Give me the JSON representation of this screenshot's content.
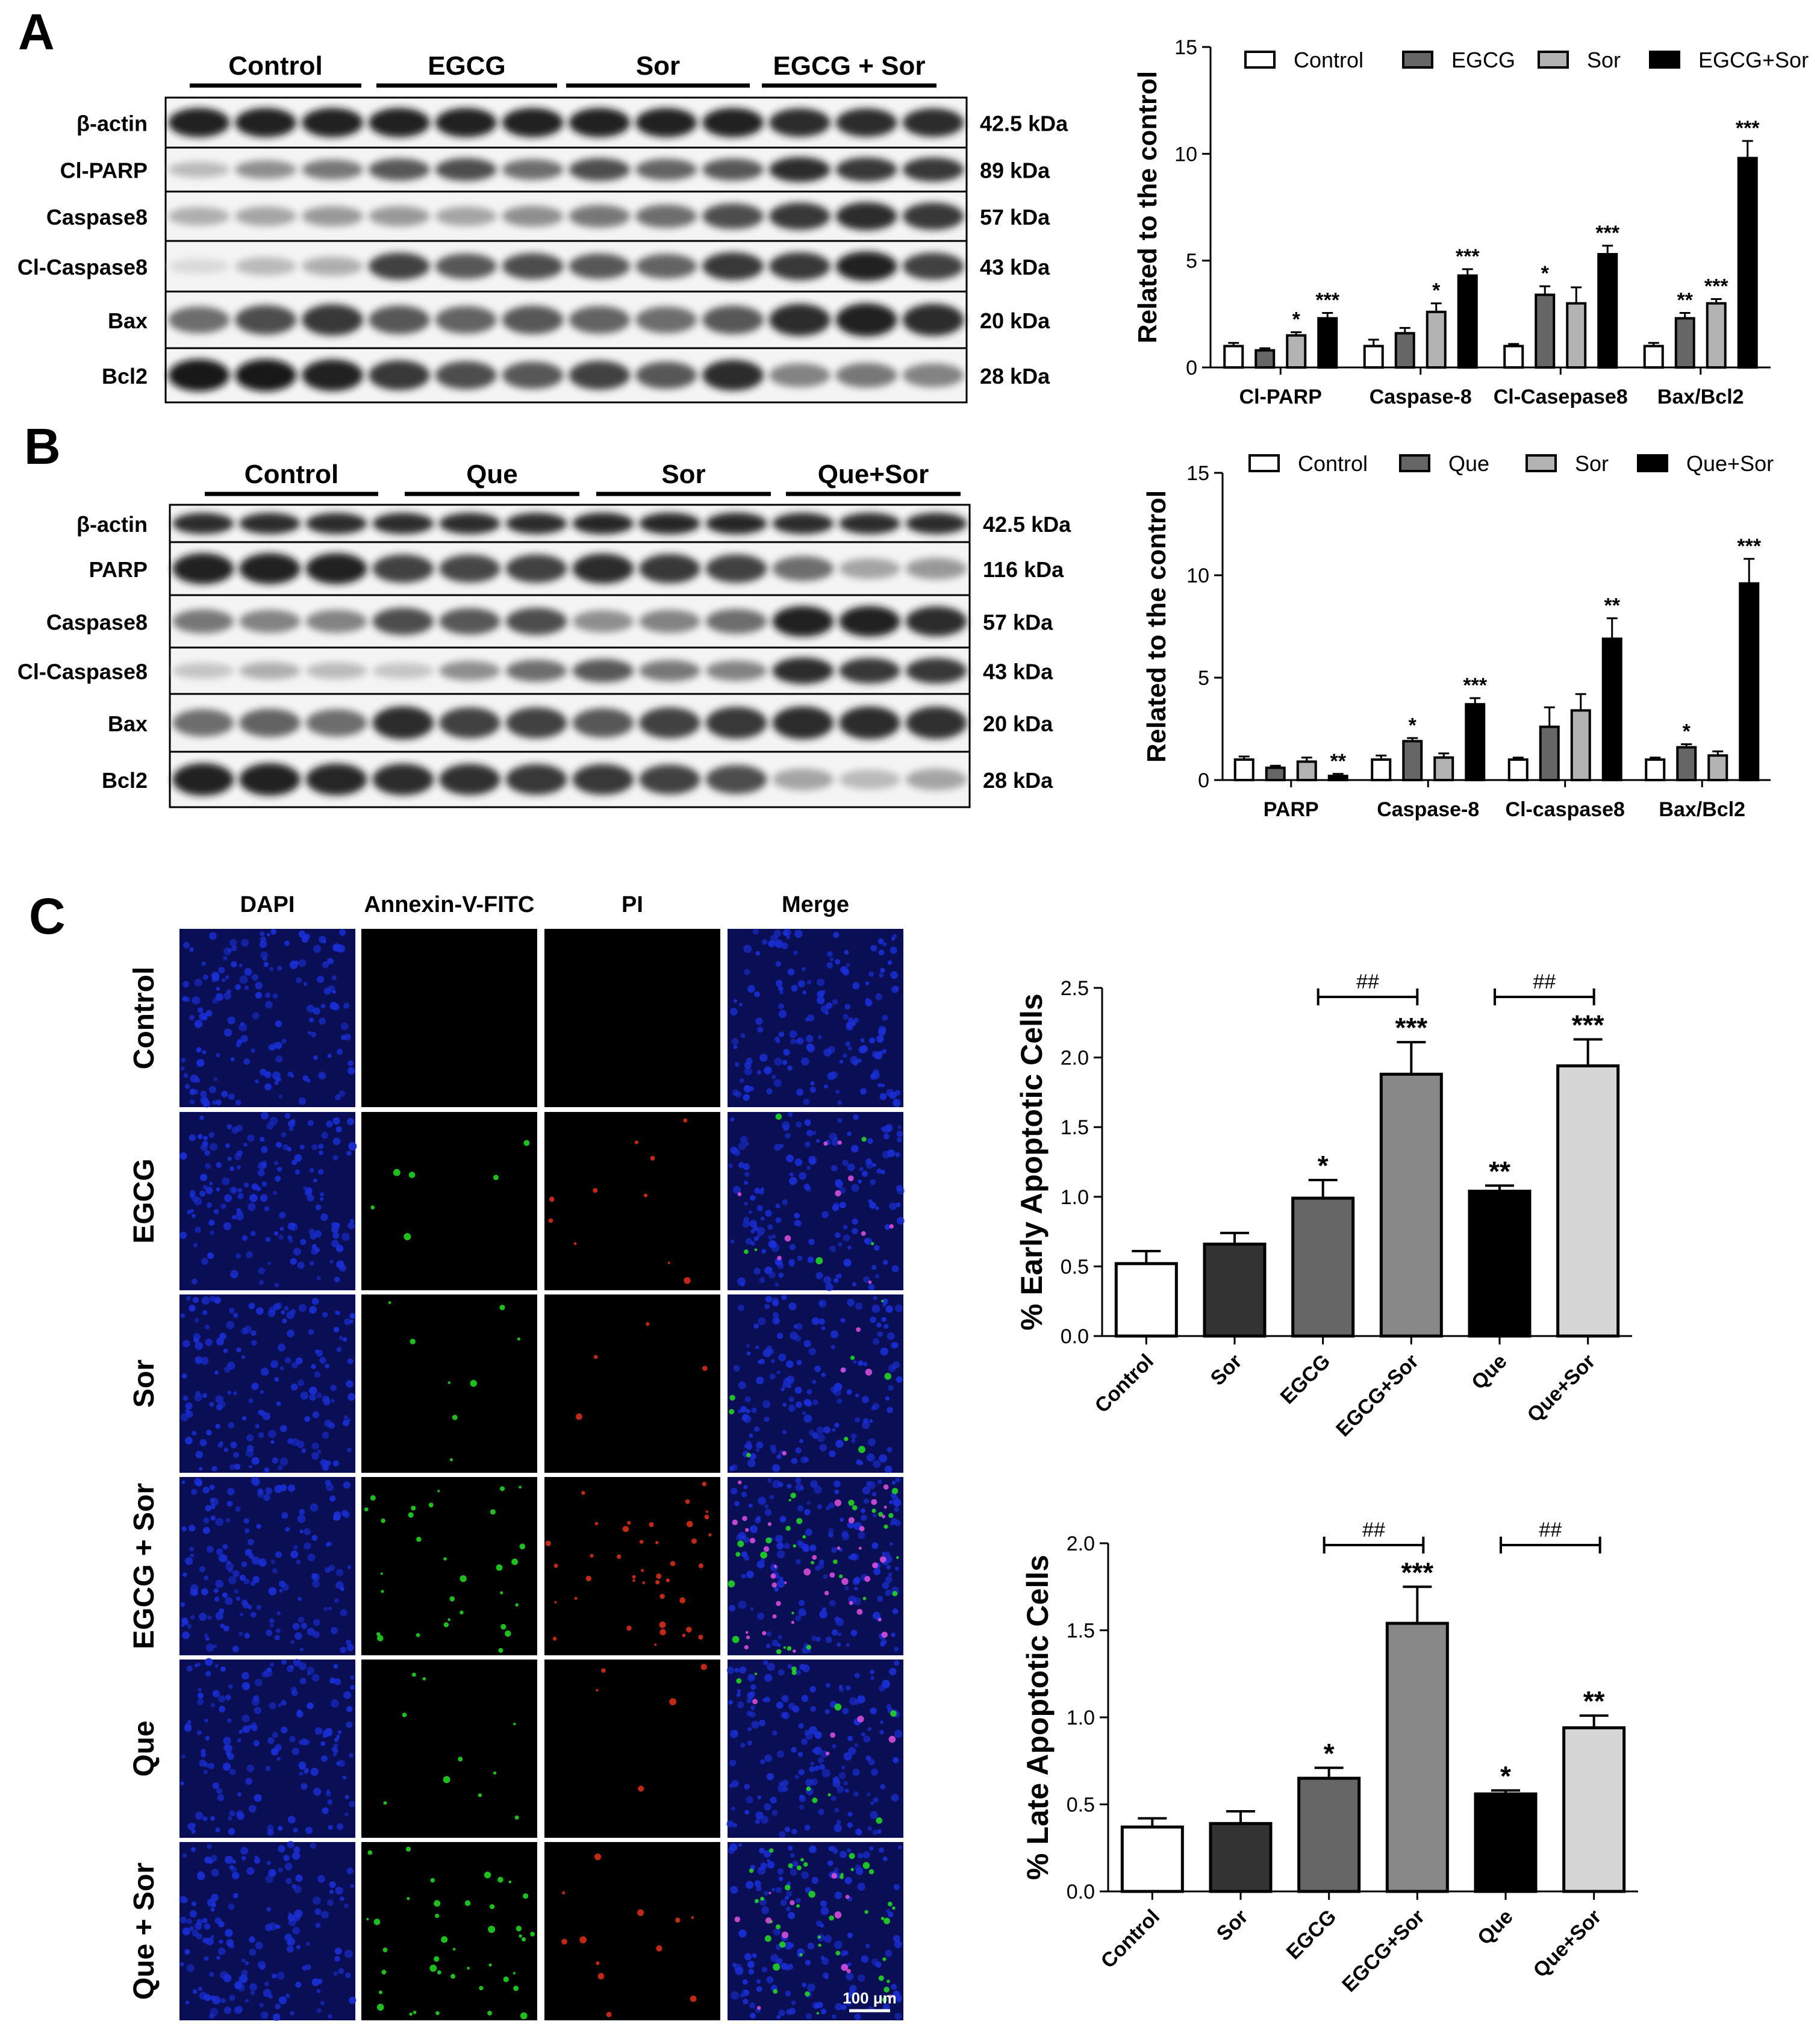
{
  "panels": {
    "a": "A",
    "b": "B",
    "c": "C"
  },
  "blot_a": {
    "groups": [
      "Control",
      "EGCG",
      "Sor",
      "EGCG + Sor"
    ],
    "rows": [
      {
        "label": "β-actin",
        "kda": "42.5 kDa"
      },
      {
        "label": "Cl-PARP",
        "kda": "89 kDa"
      },
      {
        "label": "Caspase8",
        "kda": "57 kDa"
      },
      {
        "label": "Cl-Caspase8",
        "kda": "43 kDa"
      },
      {
        "label": "Bax",
        "kda": "20 kDa"
      },
      {
        "label": "Bcl2",
        "kda": "28 kDa"
      }
    ]
  },
  "blot_b": {
    "groups": [
      "Control",
      "Que",
      "Sor",
      "Que+Sor"
    ],
    "rows": [
      {
        "label": "β-actin",
        "kda": "42.5 kDa"
      },
      {
        "label": "PARP",
        "kda": "116 kDa"
      },
      {
        "label": "Caspase8",
        "kda": "57 kDa"
      },
      {
        "label": "Cl-Caspase8",
        "kda": "43 kDa"
      },
      {
        "label": "Bax",
        "kda": "20 kDa"
      },
      {
        "label": "Bcl2",
        "kda": "28 kDa"
      }
    ]
  },
  "microscopy": {
    "columns": [
      "DAPI",
      "Annexin-V-FITC",
      "PI",
      "Merge"
    ],
    "rows": [
      "Control",
      "EGCG",
      "Sor",
      "EGCG + Sor",
      "Que",
      "Que + Sor"
    ],
    "scale_bar": "100 μm"
  },
  "colors": {
    "control": "#ffffff",
    "grey_dark": "#666666",
    "grey_light": "#b3b3b3",
    "black": "#000000",
    "sor_dark": "#333333",
    "egcg_sor": "#888888",
    "que_sor": "#d6d6d6",
    "dapi": "#1a2fd6",
    "fitc": "#22e022",
    "pi": "#e0301a"
  },
  "chart_data": [
    {
      "type": "bar",
      "ylabel": "Related to the control",
      "ylim": [
        0,
        15
      ],
      "yticks": [
        0,
        5,
        10,
        15
      ],
      "legend_position": "top",
      "categories": [
        "Cl-PARP",
        "Caspase-8",
        "Cl-Casepase8",
        "Bax/Bcl2"
      ],
      "series": [
        {
          "name": "Control",
          "values": [
            1.0,
            1.0,
            1.0,
            1.0
          ],
          "errors": [
            0.15,
            0.3,
            0.1,
            0.15
          ],
          "marks": [
            "",
            "",
            "",
            ""
          ]
        },
        {
          "name": "EGCG",
          "values": [
            0.8,
            1.6,
            3.4,
            2.3
          ],
          "errors": [
            0.1,
            0.25,
            0.4,
            0.25
          ],
          "marks": [
            "",
            "",
            "*",
            "**"
          ]
        },
        {
          "name": "Sor",
          "values": [
            1.5,
            2.6,
            3.0,
            3.0
          ],
          "errors": [
            0.15,
            0.4,
            0.75,
            0.2
          ],
          "marks": [
            "*",
            "*",
            "",
            "***"
          ]
        },
        {
          "name": "EGCG+Sor",
          "values": [
            2.3,
            4.3,
            5.3,
            9.8
          ],
          "errors": [
            0.25,
            0.3,
            0.4,
            0.8
          ],
          "marks": [
            "***",
            "***",
            "***",
            "***"
          ]
        }
      ]
    },
    {
      "type": "bar",
      "ylabel": "Related to the control",
      "ylim": [
        0,
        15
      ],
      "yticks": [
        0,
        5,
        10,
        15
      ],
      "legend_position": "top",
      "categories": [
        "PARP",
        "Caspase-8",
        "Cl-caspase8",
        "Bax/Bcl2"
      ],
      "series": [
        {
          "name": "Control",
          "values": [
            1.0,
            1.0,
            1.0,
            1.0
          ],
          "errors": [
            0.15,
            0.2,
            0.1,
            0.1
          ],
          "marks": [
            "",
            "",
            "",
            ""
          ]
        },
        {
          "name": "Que",
          "values": [
            0.6,
            1.9,
            2.6,
            1.6
          ],
          "errors": [
            0.1,
            0.15,
            0.95,
            0.15
          ],
          "marks": [
            "",
            "*",
            "",
            "*"
          ]
        },
        {
          "name": "Sor",
          "values": [
            0.9,
            1.1,
            3.4,
            1.2
          ],
          "errors": [
            0.2,
            0.2,
            0.8,
            0.2
          ],
          "marks": [
            "",
            "",
            "",
            ""
          ]
        },
        {
          "name": "Que+Sor",
          "values": [
            0.2,
            3.7,
            6.9,
            9.6
          ],
          "errors": [
            0.1,
            0.3,
            1.0,
            1.2
          ],
          "marks": [
            "**",
            "***",
            "**",
            "***"
          ]
        }
      ]
    },
    {
      "type": "bar",
      "ylabel": "% Early Apoptotic Cells",
      "ylim": [
        0,
        2.5
      ],
      "yticks": [
        "0.0",
        "0.5",
        "1.0",
        "1.5",
        "2.0",
        "2.5"
      ],
      "categories": [
        "Control",
        "Sor",
        "EGCG",
        "EGCG+Sor",
        "Que",
        "Que+Sor"
      ],
      "values": [
        0.52,
        0.66,
        0.99,
        1.88,
        1.04,
        1.94
      ],
      "errors": [
        0.09,
        0.08,
        0.13,
        0.23,
        0.04,
        0.19
      ],
      "marks": [
        "",
        "",
        "*",
        "***",
        "**",
        "***"
      ],
      "brackets": [
        {
          "from": "EGCG",
          "to": "EGCG+Sor",
          "label": "##"
        },
        {
          "from": "Que",
          "to": "Que+Sor",
          "label": "##"
        }
      ]
    },
    {
      "type": "bar",
      "ylabel": "% Late Apoptotic Cells",
      "ylim": [
        0,
        2.0
      ],
      "yticks": [
        "0.0",
        "0.5",
        "1.0",
        "1.5",
        "2.0"
      ],
      "categories": [
        "Control",
        "Sor",
        "EGCG",
        "EGCG+Sor",
        "Que",
        "Que+Sor"
      ],
      "values": [
        0.37,
        0.39,
        0.65,
        1.54,
        0.56,
        0.94
      ],
      "errors": [
        0.05,
        0.07,
        0.06,
        0.21,
        0.02,
        0.07
      ],
      "marks": [
        "",
        "",
        "*",
        "***",
        "*",
        "**"
      ],
      "brackets": [
        {
          "from": "EGCG",
          "to": "EGCG+Sor",
          "label": "##"
        },
        {
          "from": "Que",
          "to": "Que+Sor",
          "label": "##"
        }
      ]
    }
  ]
}
